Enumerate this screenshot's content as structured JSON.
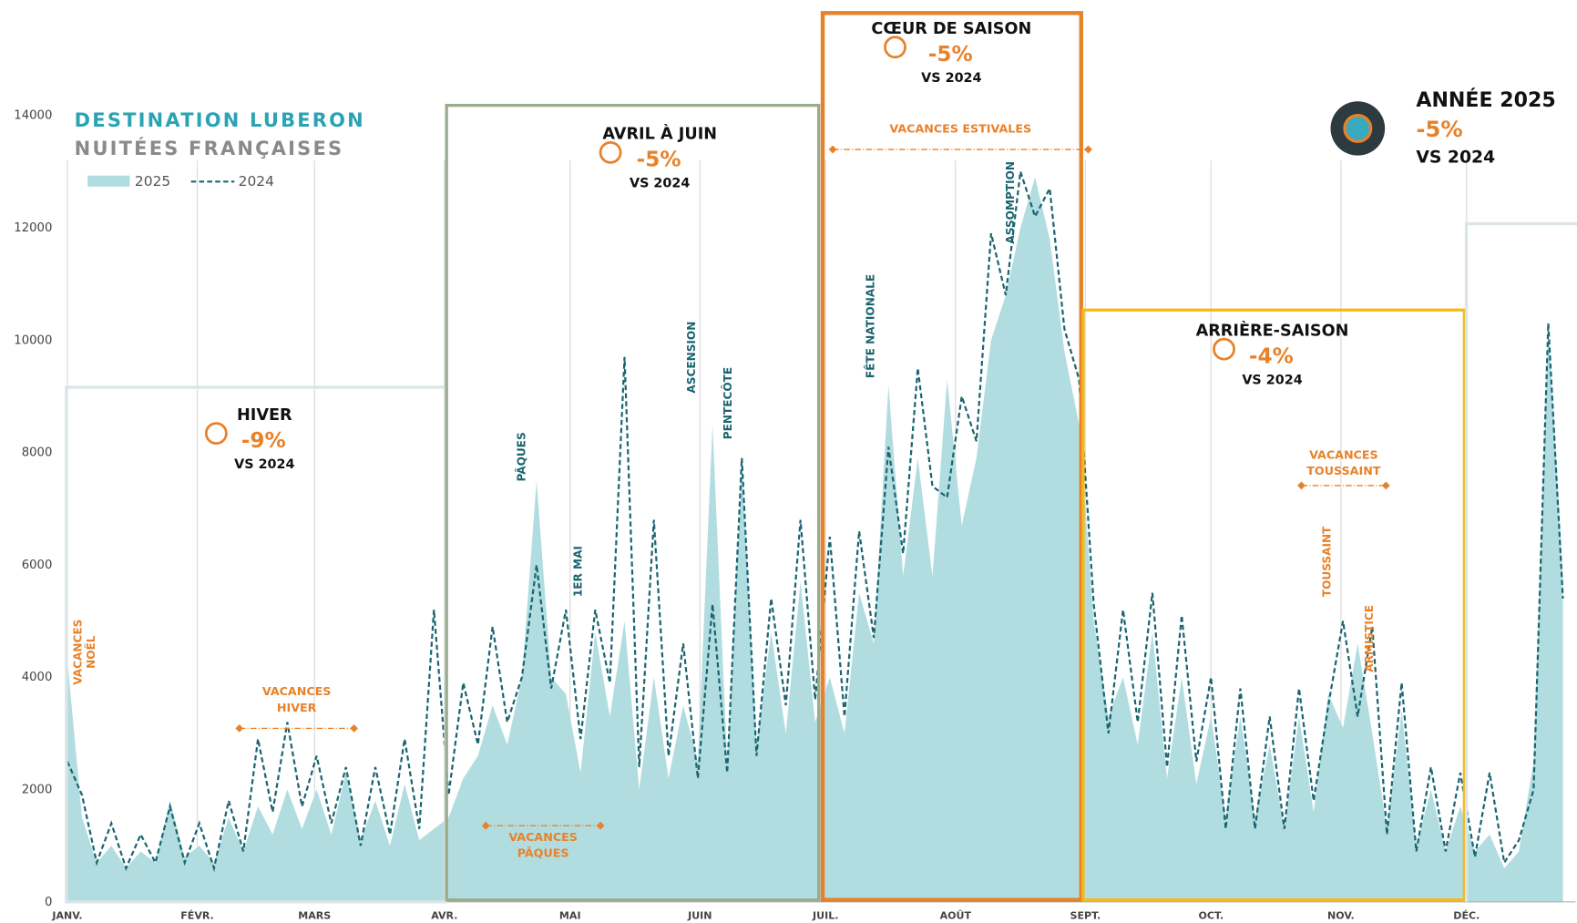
{
  "chart_data": {
    "type": "area",
    "title": "DESTINATION LUBERON",
    "subtitle": "NUITÉES FRANÇAISES",
    "x": [
      0,
      3.5,
      7,
      10.5,
      14,
      17.5,
      21,
      24.5,
      28,
      31.5,
      35,
      38.5,
      42,
      45.5,
      49,
      52.5,
      56,
      59.5,
      63,
      66.5,
      70,
      73.5,
      77,
      80.5,
      84,
      87.5,
      91,
      94.5,
      98,
      101.5,
      105,
      108.5,
      112,
      115.5,
      119,
      122.5,
      126,
      129.5,
      133,
      136.5,
      140,
      143.5,
      147,
      150.5,
      154,
      157.5,
      161,
      164.5,
      168,
      171.5,
      175,
      178.5,
      182,
      185.5,
      189,
      192.5,
      196,
      199.5,
      203,
      206.5,
      210,
      213.5,
      217,
      220.5,
      224,
      227.5,
      231,
      234.5,
      238,
      241.5,
      245,
      248.5,
      252,
      255.5,
      259,
      262.5,
      266,
      269.5,
      273,
      276.5,
      280,
      283.5,
      287,
      290.5,
      294,
      297.5,
      301,
      304.5,
      308,
      311.5,
      315,
      318.5,
      322,
      325.5,
      329,
      332.5,
      336,
      339.5,
      343,
      346.5,
      350,
      353.5,
      357
    ],
    "xlim": [
      0,
      360
    ],
    "xticks": [
      {
        "value": 0,
        "label": "JANV."
      },
      {
        "value": 31,
        "label": "FÉVR."
      },
      {
        "value": 59,
        "label": "MARS"
      },
      {
        "value": 90,
        "label": "AVR."
      },
      {
        "value": 120,
        "label": "MAI"
      },
      {
        "value": 151,
        "label": "JUIN"
      },
      {
        "value": 181,
        "label": "JUIL."
      },
      {
        "value": 212,
        "label": "AOÛT"
      },
      {
        "value": 243,
        "label": "SEPT."
      },
      {
        "value": 273,
        "label": "OCT."
      },
      {
        "value": 304,
        "label": "NOV."
      },
      {
        "value": 334,
        "label": "DÉC."
      }
    ],
    "ylim": [
      0,
      14000
    ],
    "yticks": [
      0,
      2000,
      4000,
      6000,
      8000,
      10000,
      12000,
      14000
    ],
    "series": [
      {
        "name": "2025",
        "color": "#b2dde0",
        "values": [
          4300,
          1500,
          700,
          1000,
          600,
          900,
          700,
          1800,
          800,
          1000,
          700,
          1500,
          900,
          1700,
          1200,
          2000,
          1300,
          2000,
          1200,
          2300,
          1100,
          1800,
          1000,
          2100,
          1100,
          1300,
          1500,
          2200,
          2600,
          3500,
          2800,
          4000,
          7500,
          4000,
          3700,
          2300,
          4800,
          3300,
          5000,
          2000,
          4000,
          2200,
          3500,
          2500,
          8500,
          2500,
          7800,
          2800,
          4800,
          3000,
          5700,
          3200,
          4000,
          3000,
          5500,
          4600,
          9200,
          5800,
          7900,
          5800,
          9300,
          6700,
          7900,
          10000,
          10800,
          12000,
          12900,
          11800,
          9800,
          8500,
          5000,
          3300,
          4000,
          2800,
          4800,
          2200,
          4000,
          2100,
          3300,
          1500,
          3300,
          1500,
          2800,
          1300,
          3300,
          1600,
          3700,
          3100,
          4600,
          3000,
          1300,
          3400,
          1000,
          2000,
          900,
          1700,
          900,
          1200,
          600,
          900,
          2500,
          10300,
          5800
        ]
      },
      {
        "name": "2024",
        "color": "#1a6470",
        "values": [
          2500,
          1900,
          700,
          1400,
          600,
          1200,
          700,
          1700,
          700,
          1400,
          600,
          1800,
          900,
          2900,
          1600,
          3200,
          1700,
          2600,
          1400,
          2400,
          1000,
          2400,
          1200,
          2900,
          1300,
          5200,
          1900,
          3900,
          2800,
          4900,
          3200,
          4000,
          6000,
          3800,
          5200,
          2900,
          5200,
          3900,
          9700,
          2400,
          6800,
          2600,
          4600,
          2200,
          5300,
          2300,
          7900,
          2600,
          5400,
          3500,
          6800,
          3600,
          6500,
          3300,
          6600,
          4700,
          8100,
          6200,
          9500,
          7400,
          7200,
          9000,
          8200,
          11900,
          10800,
          13000,
          12200,
          12700,
          10200,
          9300,
          5300,
          3000,
          5200,
          3200,
          5500,
          2400,
          5100,
          2500,
          4000,
          1300,
          3800,
          1300,
          3300,
          1300,
          3800,
          1800,
          3500,
          5000,
          3300,
          4900,
          1200,
          3900,
          900,
          2400,
          900,
          2300,
          800,
          2300,
          700,
          1100,
          2000,
          10300,
          5400
        ]
      }
    ],
    "periods": [
      {
        "lines": [
          "HIVER"
        ],
        "change": "-9%",
        "note": "VS 2024",
        "color": "#dbe5e7"
      },
      {
        "lines": [
          "AVRIL À JUIN"
        ],
        "change": "-5%",
        "note": "VS 2024",
        "color": "#9aab8e"
      },
      {
        "lines": [
          "CŒUR DE SAISON"
        ],
        "change": "-5%",
        "note": "VS 2024",
        "color": "#e8822a"
      },
      {
        "lines": [
          "ARRIÈRE-SAISON"
        ],
        "change": "-4%",
        "note": "VS 2024",
        "color": "#f5b91a"
      }
    ],
    "summary": {
      "title": "ANNÉE 2025",
      "change": "-5%",
      "note": "VS 2024"
    },
    "holidays": [
      {
        "lines": [
          "VACANCES",
          "NOËL"
        ],
        "color": "#e8822a"
      },
      {
        "lines": [
          "PÂQUES"
        ],
        "color": "#1a6470"
      },
      {
        "lines": [
          "1ER MAI"
        ],
        "color": "#1a6470"
      },
      {
        "lines": [
          "ASCENSION"
        ],
        "color": "#1a6470"
      },
      {
        "lines": [
          "PENTECÔTE"
        ],
        "color": "#1a6470"
      },
      {
        "lines": [
          "FÊTE NATIONALE"
        ],
        "color": "#1a6470"
      },
      {
        "lines": [
          "ASSOMPTION"
        ],
        "color": "#1a6470"
      },
      {
        "lines": [
          "TOUSSAINT"
        ],
        "color": "#e8822a"
      },
      {
        "lines": [
          "ARMISTICE"
        ],
        "color": "#e8822a"
      }
    ],
    "vacations": [
      {
        "lines": [
          "VACANCES",
          "HIVER"
        ]
      },
      {
        "lines": [
          "VACANCES",
          "PÂQUES"
        ]
      },
      {
        "lines": [
          "VACANCES ESTIVALES"
        ]
      },
      {
        "lines": [
          "VACANCES",
          "TOUSSAINT"
        ]
      }
    ]
  }
}
